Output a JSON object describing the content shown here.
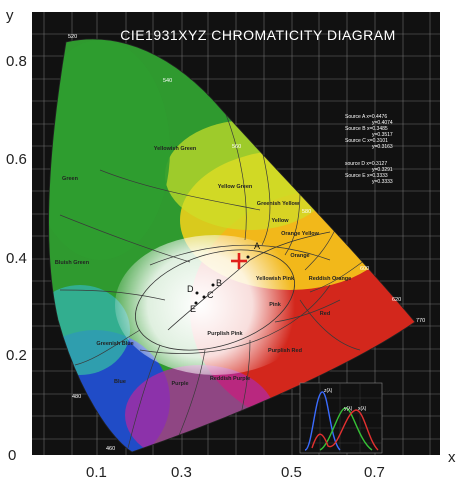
{
  "title": "CIE1931XYZ CHROMATICITY DIAGRAM",
  "x_axis": {
    "label": "x",
    "ticks": [
      "0.1",
      "0.3",
      "0.5",
      "0.7"
    ]
  },
  "y_axis": {
    "label": "y",
    "ticks": [
      "0",
      "0.2",
      "0.4",
      "0.6",
      "0.8"
    ]
  },
  "wavelength_labels": [
    "520",
    "540",
    "560",
    "580",
    "600",
    "620",
    "770",
    "480",
    "460"
  ],
  "regions": [
    "Green",
    "Yellowish Green",
    "Yellow Green",
    "Greenish Yellow",
    "Yellow",
    "Orange Yellow",
    "Orange",
    "Reddish Orange",
    "Red",
    "Yellowish Pink",
    "Pink",
    "Purplish Pink",
    "Purplish Red",
    "Reddish Purple",
    "Purple",
    "Blue",
    "Greenish Blue",
    "Bluish Green"
  ],
  "points": [
    "A",
    "B",
    "C",
    "D",
    "E"
  ],
  "sources_group1": [
    "Source A x=0.4476",
    "y=0.4074",
    "Source B x=0.3485",
    "y=0.3517",
    "Source C x=0.3101",
    "y=0.3163"
  ],
  "sources_group2": [
    "source D x=0.3127",
    "y=0.3291",
    "Source E x=0.3333",
    "y=0.3333"
  ],
  "inset_labels": [
    "z(λ)",
    "y(λ)",
    "x(λ)"
  ],
  "marker": {
    "x": 0.4,
    "y": 0.39,
    "color": "#e0201c"
  }
}
